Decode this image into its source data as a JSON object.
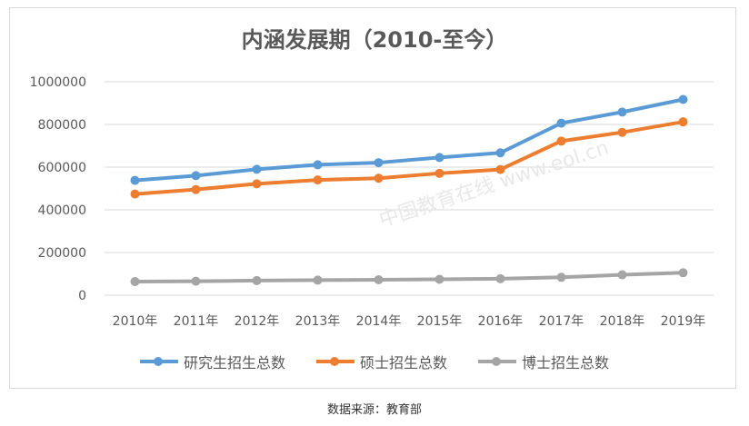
{
  "chart_data": {
    "type": "line",
    "title": "内涵发展期（2010-至今）",
    "categories": [
      "2010年",
      "2011年",
      "2012年",
      "2013年",
      "2014年",
      "2015年",
      "2016年",
      "2017年",
      "2018年",
      "2019年"
    ],
    "ylim": [
      0,
      1000000
    ],
    "yticks": [
      "0",
      "200000",
      "400000",
      "600000",
      "800000",
      "1000000"
    ],
    "grid": true,
    "legend": "bottom",
    "series": [
      {
        "name": "研究生招生总数",
        "color": "#5b9bd5",
        "values": [
          538000,
          560000,
          590000,
          611000,
          621000,
          645000,
          667000,
          806000,
          858000,
          917000
        ]
      },
      {
        "name": "硕士招生总数",
        "color": "#ed7d31",
        "values": [
          474000,
          495000,
          522000,
          540000,
          548000,
          571000,
          589000,
          722000,
          763000,
          812000
        ]
      },
      {
        "name": "博士招生总数",
        "color": "#a5a5a5",
        "values": [
          64000,
          65600,
          68400,
          70500,
          72600,
          74400,
          77300,
          83900,
          95500,
          105200
        ]
      }
    ]
  },
  "watermark": "中国教育在线 www.eol.cn",
  "caption": "数据来源：教育部"
}
